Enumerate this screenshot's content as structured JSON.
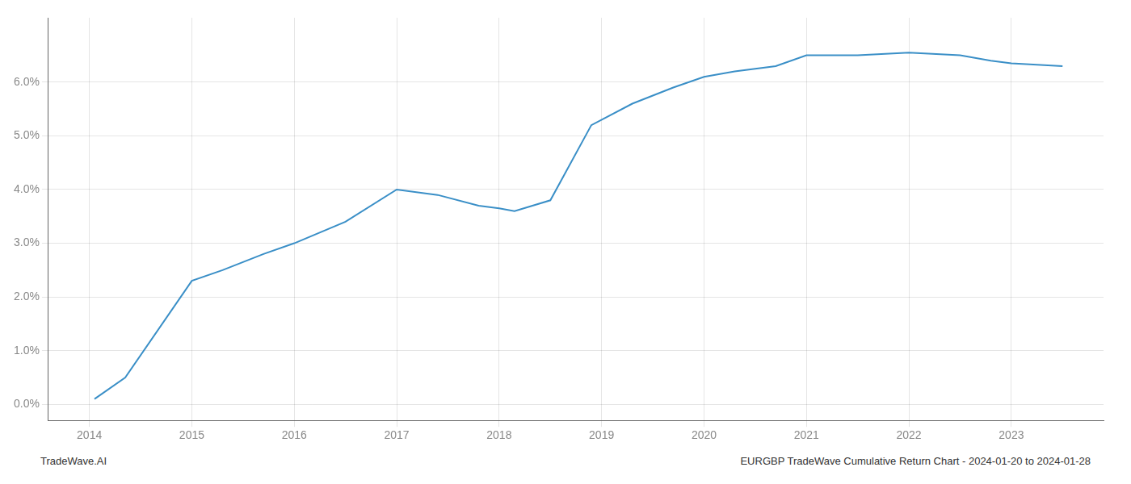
{
  "chart_data": {
    "type": "line",
    "x": [
      2014.05,
      2014.35,
      2015.0,
      2015.3,
      2015.7,
      2016.0,
      2016.5,
      2017.0,
      2017.4,
      2017.8,
      2018.0,
      2018.15,
      2018.5,
      2018.9,
      2019.3,
      2019.7,
      2020.0,
      2020.3,
      2020.7,
      2021.0,
      2021.5,
      2022.0,
      2022.5,
      2022.8,
      2023.0,
      2023.5
    ],
    "values": [
      0.001,
      0.005,
      0.023,
      0.025,
      0.028,
      0.03,
      0.034,
      0.04,
      0.039,
      0.037,
      0.0365,
      0.036,
      0.038,
      0.052,
      0.056,
      0.059,
      0.061,
      0.062,
      0.063,
      0.065,
      0.065,
      0.0655,
      0.065,
      0.064,
      0.0635,
      0.063
    ],
    "color": "#3a8fc7",
    "xlim": [
      2013.6,
      2023.9
    ],
    "ylim": [
      -0.003,
      0.072
    ],
    "xticks": [
      2014,
      2015,
      2016,
      2017,
      2018,
      2019,
      2020,
      2021,
      2022,
      2023
    ],
    "yticks": [
      {
        "value": 0.0,
        "label": "0.0%"
      },
      {
        "value": 0.01,
        "label": "1.0%"
      },
      {
        "value": 0.02,
        "label": "2.0%"
      },
      {
        "value": 0.03,
        "label": "3.0%"
      },
      {
        "value": 0.04,
        "label": "4.0%"
      },
      {
        "value": 0.05,
        "label": "5.0%"
      },
      {
        "value": 0.06,
        "label": "6.0%"
      }
    ],
    "grid": true,
    "annotations": [
      "TradeWave.AI",
      "EURGBP TradeWave Cumulative Return Chart - 2024-01-20 to 2024-01-28"
    ]
  }
}
